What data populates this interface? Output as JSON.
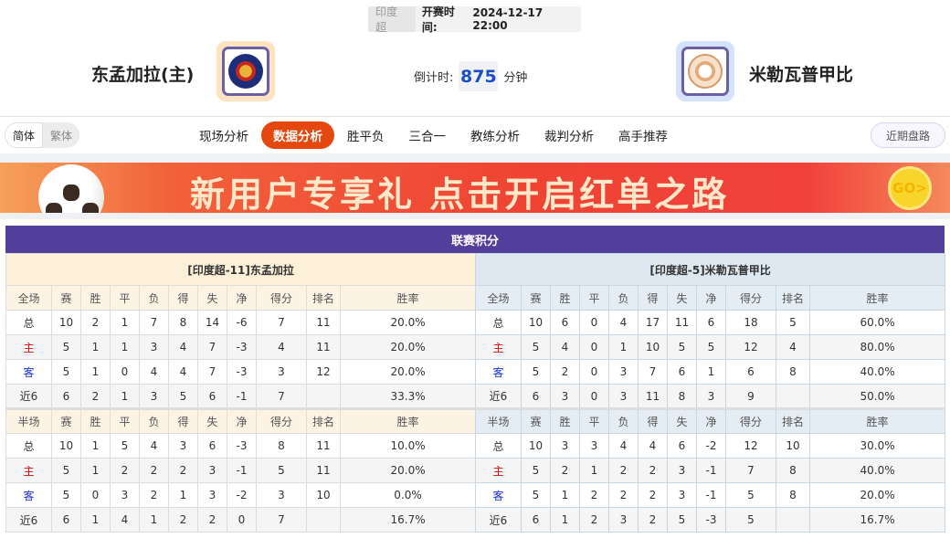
{
  "match": {
    "league": "印度超",
    "start_label": "开赛时间:",
    "start_time": "2024-12-17 22:00"
  },
  "home": {
    "name": "东孟加拉(主)",
    "logo_bg": "#fde3c0"
  },
  "away": {
    "name": "米勒瓦普甲比",
    "logo_bg": "#d4e2fb"
  },
  "countdown": {
    "label": "倒计时:",
    "value": "875",
    "unit": "分钟"
  },
  "lang": [
    "简体",
    "繁体"
  ],
  "tabs": [
    {
      "label": "现场分析"
    },
    {
      "label": "数据分析",
      "active": true
    },
    {
      "label": "胜平负"
    },
    {
      "label": "三合一"
    },
    {
      "label": "教练分析"
    },
    {
      "label": "裁判分析"
    },
    {
      "label": "高手推荐"
    }
  ],
  "recent_button": "近期盘路",
  "banner": {
    "text": "新用户专享礼  点击开启红单之路",
    "go": "GO>"
  },
  "section_title": "联赛积分",
  "colors": {
    "accent": "#e4480f",
    "section": "#523f9c",
    "home_label": "#e00000",
    "away_label": "#1a2fd0"
  },
  "tables": [
    {
      "caption": "[印度超-11]东孟加拉",
      "full_header": [
        "全场",
        "赛",
        "胜",
        "平",
        "负",
        "得",
        "失",
        "净",
        "得分",
        "排名",
        "胜率"
      ],
      "full_rows": [
        [
          "总",
          "10",
          "2",
          "1",
          "7",
          "8",
          "14",
          "-6",
          "7",
          "11",
          "20.0%"
        ],
        [
          "主",
          "5",
          "1",
          "1",
          "3",
          "4",
          "7",
          "-3",
          "4",
          "11",
          "20.0%"
        ],
        [
          "客",
          "5",
          "1",
          "0",
          "4",
          "4",
          "7",
          "-3",
          "3",
          "12",
          "20.0%"
        ],
        [
          "近6",
          "6",
          "2",
          "1",
          "3",
          "5",
          "6",
          "-1",
          "7",
          "",
          "33.3%"
        ]
      ],
      "half_header": [
        "半场",
        "赛",
        "胜",
        "平",
        "负",
        "得",
        "失",
        "净",
        "得分",
        "排名",
        "胜率"
      ],
      "half_rows": [
        [
          "总",
          "10",
          "1",
          "5",
          "4",
          "3",
          "6",
          "-3",
          "8",
          "11",
          "10.0%"
        ],
        [
          "主",
          "5",
          "1",
          "2",
          "2",
          "2",
          "3",
          "-1",
          "5",
          "11",
          "20.0%"
        ],
        [
          "客",
          "5",
          "0",
          "3",
          "2",
          "1",
          "3",
          "-2",
          "3",
          "10",
          "0.0%"
        ],
        [
          "近6",
          "6",
          "1",
          "4",
          "1",
          "2",
          "2",
          "0",
          "7",
          "",
          "16.7%"
        ]
      ]
    },
    {
      "caption": "[印度超-5]米勒瓦普甲比",
      "full_header": [
        "全场",
        "赛",
        "胜",
        "平",
        "负",
        "得",
        "失",
        "净",
        "得分",
        "排名",
        "胜率"
      ],
      "full_rows": [
        [
          "总",
          "10",
          "6",
          "0",
          "4",
          "17",
          "11",
          "6",
          "18",
          "5",
          "60.0%"
        ],
        [
          "主",
          "5",
          "4",
          "0",
          "1",
          "10",
          "5",
          "5",
          "12",
          "4",
          "80.0%"
        ],
        [
          "客",
          "5",
          "2",
          "0",
          "3",
          "7",
          "6",
          "1",
          "6",
          "8",
          "40.0%"
        ],
        [
          "近6",
          "6",
          "3",
          "0",
          "3",
          "11",
          "8",
          "3",
          "9",
          "",
          "50.0%"
        ]
      ],
      "half_header": [
        "半场",
        "赛",
        "胜",
        "平",
        "负",
        "得",
        "失",
        "净",
        "得分",
        "排名",
        "胜率"
      ],
      "half_rows": [
        [
          "总",
          "10",
          "3",
          "3",
          "4",
          "4",
          "6",
          "-2",
          "12",
          "10",
          "30.0%"
        ],
        [
          "主",
          "5",
          "2",
          "1",
          "2",
          "2",
          "3",
          "-1",
          "7",
          "8",
          "40.0%"
        ],
        [
          "客",
          "5",
          "1",
          "2",
          "2",
          "2",
          "3",
          "-1",
          "5",
          "8",
          "20.0%"
        ],
        [
          "近6",
          "6",
          "1",
          "2",
          "3",
          "2",
          "5",
          "-3",
          "5",
          "",
          "16.7%"
        ]
      ]
    }
  ]
}
